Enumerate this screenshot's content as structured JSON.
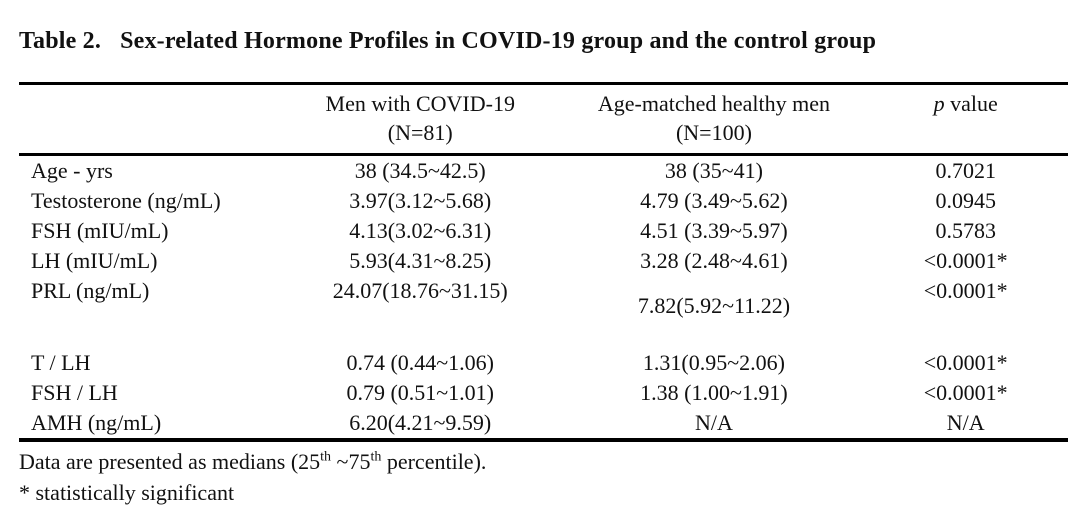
{
  "title": {
    "label": "Table 2.",
    "text": "Sex-related Hormone Profiles in COVID-19 group and the control group"
  },
  "table": {
    "header": {
      "col2_line1": "Men with COVID-19",
      "col2_line2": "(N=81)",
      "col3_line1": "Age-matched healthy men",
      "col3_line2": "(N=100)",
      "col4_italic": "p",
      "col4_rest": " value"
    },
    "rows": [
      {
        "label": "Age - yrs",
        "covid": "38 (34.5~42.5)",
        "healthy": "38 (35~41)",
        "p": "0.7021"
      },
      {
        "label": "Testosterone (ng/mL)",
        "covid": "3.97(3.12~5.68)",
        "healthy": "4.79 (3.49~5.62)",
        "p": "0.0945"
      },
      {
        "label": "FSH (mIU/mL)",
        "covid": "4.13(3.02~6.31)",
        "healthy": "4.51 (3.39~5.97)",
        "p": "0.5783"
      },
      {
        "label": "LH (mIU/mL)",
        "covid": "5.93(4.31~8.25)",
        "healthy": "3.28 (2.48~4.61)",
        "p": "<0.0001*"
      },
      {
        "label": "PRL (ng/mL)",
        "covid": "24.07(18.76~31.15)",
        "healthy": "7.82(5.92~11.22)",
        "p": "<0.0001*"
      },
      {
        "label": "",
        "covid": "",
        "healthy": "",
        "p": ""
      },
      {
        "label": "T / LH",
        "covid": "0.74 (0.44~1.06)",
        "healthy": "1.31(0.95~2.06)",
        "p": "<0.0001*"
      },
      {
        "label": "FSH / LH",
        "covid": "0.79 (0.51~1.01)",
        "healthy": "1.38 (1.00~1.91)",
        "p": "<0.0001*"
      },
      {
        "label": "AMH (ng/mL)",
        "covid": "6.20(4.21~9.59)",
        "healthy": "N/A",
        "p": "N/A"
      }
    ]
  },
  "footnotes": {
    "line1_part1": "Data are presented as medians (25",
    "line1_sup1": "th",
    "line1_part2": " ~75",
    "line1_sup2": "th",
    "line1_part3": " percentile).",
    "line2": "* statistically significant"
  }
}
